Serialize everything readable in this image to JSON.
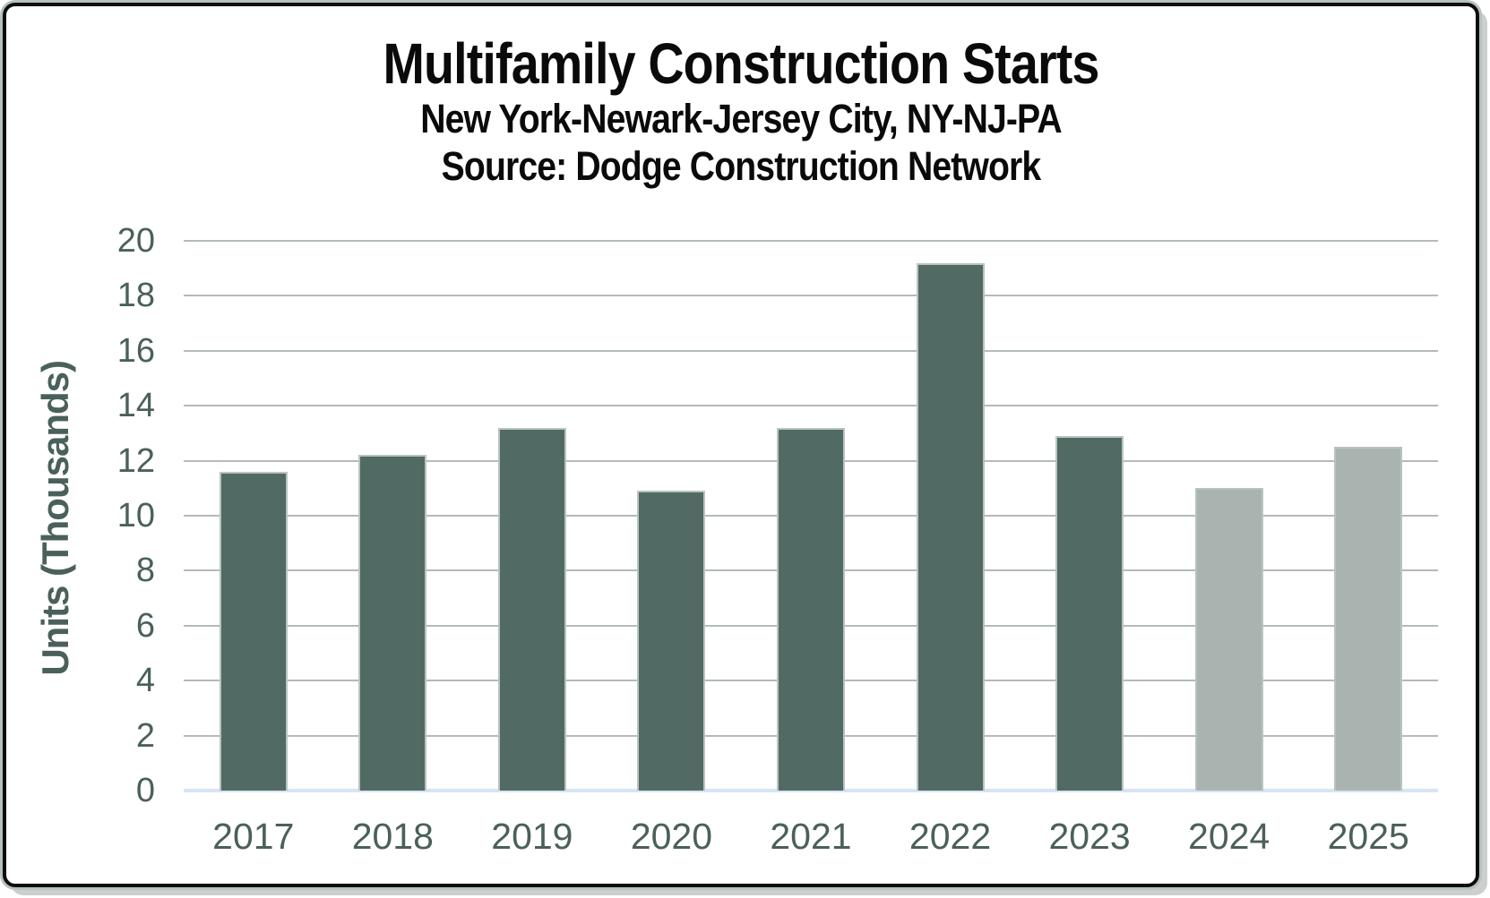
{
  "chart_data": {
    "type": "bar",
    "title": "Multifamily Construction Starts",
    "subtitle": "New York-Newark-Jersey City, NY-NJ-PA",
    "source": "Source: Dodge Construction Network",
    "xlabel": "",
    "ylabel": "Units (Thousands)",
    "ylim": [
      0,
      20
    ],
    "ytick_step": 2,
    "ytick_labels": [
      "0",
      "2",
      "4",
      "6",
      "8",
      "10",
      "12",
      "14",
      "16",
      "18",
      "20"
    ],
    "grid": "horizontal",
    "legend": "none",
    "categories": [
      "2017",
      "2018",
      "2019",
      "2020",
      "2021",
      "2022",
      "2023",
      "2024",
      "2025"
    ],
    "values": [
      11.6,
      12.2,
      13.2,
      10.9,
      13.2,
      19.2,
      12.9,
      11.0,
      12.5
    ],
    "bar_styles": [
      "actual",
      "actual",
      "actual",
      "actual",
      "actual",
      "actual",
      "actual",
      "forecast",
      "forecast"
    ],
    "colors": {
      "actual_bar": "#516a64",
      "forecast_bar": "#a9b4b1",
      "bar_outline": "#b9c3c0",
      "axis_text": "#4a605b",
      "title_text": "#0a0a0a",
      "gridline": "#b3bbb8",
      "baseline": "#d8e4f4",
      "frame_border": "#0d0d0d",
      "frame_shadow": "#cbcfcd"
    }
  }
}
